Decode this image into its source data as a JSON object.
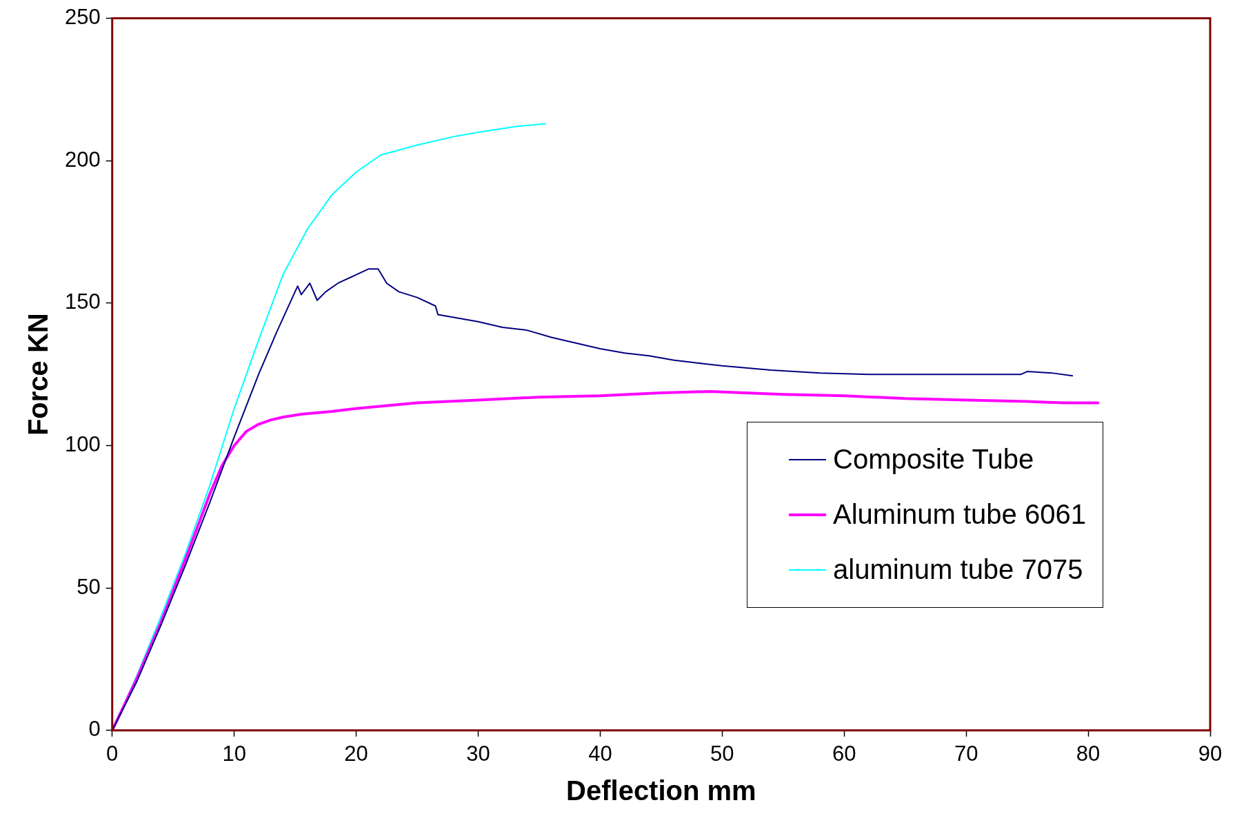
{
  "chart_data": {
    "type": "line",
    "xlabel": "Deflection mm",
    "ylabel": "Force KN",
    "xlim": [
      0,
      90
    ],
    "ylim": [
      0,
      250
    ],
    "xticks": [
      0,
      10,
      20,
      30,
      40,
      50,
      60,
      70,
      80,
      90
    ],
    "yticks": [
      0,
      50,
      100,
      150,
      200,
      250
    ],
    "grid": false,
    "legend": "right",
    "marker": "none",
    "line_style": "solid",
    "series": [
      {
        "name": "Composite Tube",
        "color": "#000080",
        "x": [
          0,
          2,
          4,
          6,
          8,
          10,
          12,
          13.5,
          15.2,
          15.5,
          16.2,
          16.8,
          17.5,
          18.5,
          20,
          21,
          21.8,
          22.5,
          23.5,
          25,
          26.5,
          26.7,
          28,
          30,
          32,
          34,
          36,
          38,
          40,
          42,
          44,
          46,
          48,
          50,
          54,
          58,
          62,
          66,
          70,
          74.5,
          75,
          77,
          78.7
        ],
        "values": [
          0,
          17,
          37,
          58,
          80,
          103,
          125,
          140,
          156,
          153,
          157,
          151,
          154,
          157,
          160,
          162,
          162,
          157,
          154,
          152,
          149,
          146,
          145,
          143.5,
          141.5,
          140.5,
          138,
          136,
          134,
          132.5,
          131.5,
          130,
          129,
          128,
          126.5,
          125.5,
          125,
          125,
          125,
          125,
          126,
          125.5,
          124.5
        ]
      },
      {
        "name": "Aluminum tube 6061",
        "color": "#ff00ff",
        "x": [
          0,
          2,
          4,
          6,
          8,
          9,
          10,
          11,
          12,
          13,
          14,
          15.5,
          18,
          20,
          25,
          30,
          35,
          40,
          45,
          49,
          55,
          60,
          65,
          70,
          75,
          78,
          80.8
        ],
        "values": [
          0,
          18,
          38,
          60,
          83,
          93,
          100,
          105,
          107.5,
          109,
          110,
          111,
          112,
          113,
          115,
          116,
          117,
          117.5,
          118.5,
          119,
          118,
          117.5,
          116.5,
          116,
          115.5,
          115,
          115
        ]
      },
      {
        "name": "aluminum tube 7075",
        "color": "#00ffff",
        "x": [
          0,
          2,
          4,
          6,
          8,
          10,
          12,
          14,
          16,
          18,
          20,
          22,
          25,
          28,
          30,
          33,
          35.5
        ],
        "values": [
          0,
          19,
          40,
          62,
          86,
          113,
          137,
          160,
          176,
          188,
          196,
          202,
          205.5,
          208.5,
          210,
          212,
          213
        ]
      }
    ]
  }
}
